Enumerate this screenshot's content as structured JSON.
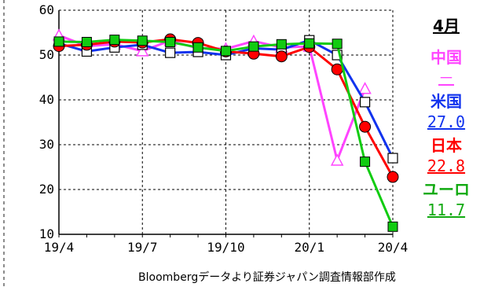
{
  "chart_data": {
    "type": "line",
    "title_fragment": "",
    "x": [
      "19/4",
      "19/5",
      "19/6",
      "19/7",
      "19/8",
      "19/9",
      "19/10",
      "19/11",
      "19/12",
      "20/1",
      "20/2",
      "20/3",
      "20/4"
    ],
    "xticks": [
      "19/4",
      "19/7",
      "19/10",
      "20/1",
      "20/4"
    ],
    "ylim": [
      10,
      60
    ],
    "yticks": [
      10,
      20,
      30,
      40,
      50,
      60
    ],
    "grid": "dashed",
    "series": [
      {
        "name": "中国",
        "color": "#ff44ff",
        "marker": "triangle",
        "values": [
          54.4,
          52.0,
          52.4,
          50.9,
          53.2,
          51.5,
          51.4,
          53.1,
          51.7,
          51.9,
          26.5,
          42.5,
          null
        ]
      },
      {
        "name": "米国",
        "color": "#1133ee",
        "marker": "square-open",
        "values": [
          52.6,
          50.8,
          51.7,
          52.3,
          50.5,
          50.7,
          50.0,
          51.5,
          51.2,
          53.3,
          50.0,
          39.5,
          27.0
        ]
      },
      {
        "name": "日本",
        "color": "#ff0000",
        "marker": "circle",
        "values": [
          52.0,
          52.3,
          53.0,
          52.8,
          53.5,
          52.7,
          50.8,
          50.3,
          49.7,
          51.8,
          46.8,
          34.0,
          22.8
        ]
      },
      {
        "name": "ユーロ",
        "color": "#11cc11",
        "marker": "square",
        "values": [
          53.0,
          52.9,
          53.4,
          53.2,
          52.9,
          51.7,
          50.9,
          51.9,
          52.4,
          52.6,
          52.5,
          26.2,
          11.7
        ]
      }
    ],
    "source": "Bloombergデータより証券ジャパン調査情報部作成"
  },
  "legend": {
    "month": "4月",
    "items": [
      {
        "label": "中国",
        "value": "－",
        "color": "#ff44ff"
      },
      {
        "label": "米国",
        "value": "27.0",
        "color": "#1133ee"
      },
      {
        "label": "日本",
        "value": "22.8",
        "color": "#ff0000"
      },
      {
        "label": "ユーロ",
        "value": "11.7",
        "color": "#11aa11"
      }
    ]
  }
}
